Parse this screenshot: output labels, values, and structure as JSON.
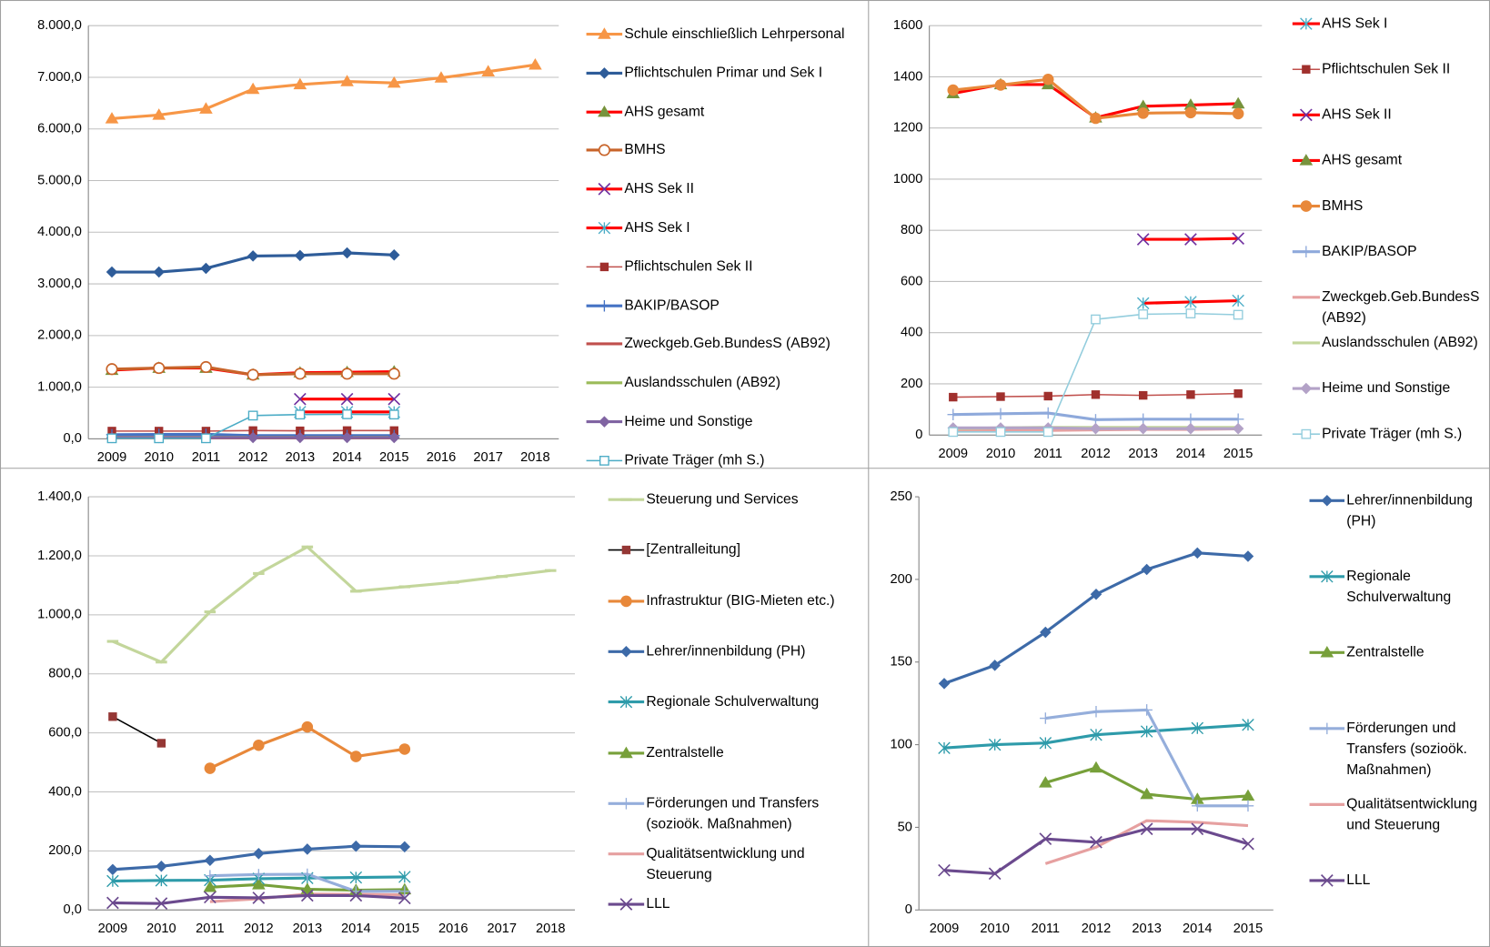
{
  "chart_data": [
    {
      "type": "line",
      "categories": [
        "2009",
        "2010",
        "2011",
        "2012",
        "2013",
        "2014",
        "2015",
        "2016",
        "2017",
        "2018"
      ],
      "ylim": [
        0,
        8000
      ],
      "yticks": [
        {
          "value": 0,
          "label": "0,0"
        },
        {
          "value": 1000,
          "label": "1.000,0"
        },
        {
          "value": 2000,
          "label": "2.000,0"
        },
        {
          "value": 3000,
          "label": "3.000,0"
        },
        {
          "value": 4000,
          "label": "4.000,0"
        },
        {
          "value": 5000,
          "label": "5.000,0"
        },
        {
          "value": 6000,
          "label": "6.000,0"
        },
        {
          "value": 7000,
          "label": "7.000,0"
        },
        {
          "value": 8000,
          "label": "8.000,0"
        }
      ],
      "grid": true,
      "series": [
        {
          "name": "Schule einschließlich Lehrpersonal",
          "color": "#F79646",
          "marker": "triangle",
          "line_width": 3,
          "values": [
            6200,
            6270,
            6390,
            6770,
            6860,
            6920,
            6890,
            6990,
            7110,
            7240
          ]
        },
        {
          "name": "Pflichtschulen Primar und Sek I",
          "color": "#2E5C99",
          "marker": "diamond",
          "line_width": 3,
          "values": [
            3230,
            3230,
            3300,
            3540,
            3550,
            3600,
            3560,
            null,
            null,
            null
          ]
        },
        {
          "name": "AHS gesamt",
          "color": "#FF0000",
          "marker_color": "#77933C",
          "marker": "triangle",
          "line_width": 3,
          "values": [
            1330,
            1370,
            1370,
            1240,
            1280,
            1290,
            1300,
            null,
            null,
            null
          ]
        },
        {
          "name": "BMHS",
          "color": "#C8642A",
          "marker": "circle-open",
          "line_width": 3,
          "values": [
            1350,
            1370,
            1390,
            1240,
            1260,
            1260,
            1260,
            null,
            null,
            null
          ]
        },
        {
          "name": "AHS Sek II",
          "color": "#FF0000",
          "marker_color": "#7030A0",
          "marker": "x",
          "line_width": 3,
          "values": [
            null,
            null,
            null,
            null,
            770,
            770,
            770,
            null,
            null,
            null
          ]
        },
        {
          "name": "AHS Sek I",
          "color": "#FF0000",
          "marker_color": "#4BACC6",
          "marker": "asterisk",
          "line_width": 3,
          "values": [
            null,
            null,
            null,
            null,
            520,
            520,
            520,
            null,
            null,
            null
          ]
        },
        {
          "name": "Pflichtschulen Sek II",
          "color": "#C0504D",
          "marker_color": "#A0302D",
          "marker": "square",
          "line_width": 1.5,
          "values": [
            150,
            150,
            150,
            160,
            155,
            160,
            160,
            null,
            null,
            null
          ]
        },
        {
          "name": "BAKIP/BASOP",
          "color": "#4472C4",
          "marker": "plus",
          "line_width": 3,
          "values": [
            80,
            85,
            88,
            62,
            63,
            63,
            63,
            null,
            null,
            null
          ]
        },
        {
          "name": "Zweckgeb.Geb.BundesS (AB92)",
          "color": "#C0504D",
          "marker": "none",
          "line_width": 3,
          "values": [
            20,
            20,
            20,
            20,
            20,
            20,
            20,
            null,
            null,
            null
          ]
        },
        {
          "name": "Auslandsschulen (AB92)",
          "color": "#9BBB59",
          "marker": "none",
          "line_width": 3,
          "values": [
            30,
            30,
            30,
            30,
            30,
            30,
            30,
            null,
            null,
            null
          ]
        },
        {
          "name": "Heime und Sonstige",
          "color": "#8064A2",
          "marker": "diamond",
          "line_width": 3,
          "values": [
            25,
            25,
            25,
            25,
            25,
            25,
            25,
            null,
            null,
            null
          ]
        },
        {
          "name": "Private Träger (mh S.)",
          "color": "#4BACC6",
          "marker": "square-open",
          "line_width": 1.5,
          "values": [
            10,
            10,
            10,
            450,
            470,
            475,
            470,
            null,
            null,
            null
          ]
        }
      ]
    },
    {
      "type": "line",
      "categories": [
        "2009",
        "2010",
        "2011",
        "2012",
        "2013",
        "2014",
        "2015"
      ],
      "ylim": [
        0,
        1600
      ],
      "yticks": [
        0,
        200,
        400,
        600,
        800,
        1000,
        1200,
        1400,
        1600
      ],
      "grid": true,
      "series": [
        {
          "name": "AHS Sek I",
          "color": "#FF0000",
          "marker_color": "#4BACC6",
          "marker": "asterisk",
          "line_width": 3,
          "values": [
            null,
            null,
            null,
            null,
            515,
            520,
            525
          ]
        },
        {
          "name": "Pflichtschulen Sek II",
          "color": "#C0504D",
          "marker_color": "#A0302D",
          "marker": "square",
          "line_width": 1.5,
          "values": [
            148,
            150,
            152,
            158,
            155,
            158,
            162
          ]
        },
        {
          "name": "AHS Sek II",
          "color": "#FF0000",
          "marker_color": "#7030A0",
          "marker": "x",
          "line_width": 3,
          "values": [
            null,
            null,
            null,
            null,
            765,
            765,
            768
          ]
        },
        {
          "name": "AHS gesamt",
          "color": "#FF0000",
          "marker_color": "#77933C",
          "marker": "triangle",
          "line_width": 3,
          "values": [
            1335,
            1370,
            1370,
            1240,
            1285,
            1290,
            1295
          ]
        },
        {
          "name": "BMHS",
          "color": "#E8883A",
          "marker": "circle",
          "line_width": 3,
          "values": [
            1348,
            1368,
            1390,
            1238,
            1258,
            1260,
            1256
          ]
        },
        {
          "name": "BAKIP/BASOP",
          "color": "#8EA9DB",
          "marker": "plus",
          "line_width": 3,
          "values": [
            80,
            83,
            86,
            60,
            62,
            62,
            62
          ]
        },
        {
          "name": "Zweckgeb.Geb.BundesS (AB92)",
          "color": "#E6A0A0",
          "marker": "none",
          "line_width": 3,
          "values": [
            18,
            18,
            18,
            20,
            22,
            22,
            24
          ]
        },
        {
          "name": "Auslandsschulen (AB92)",
          "color": "#C3D69B",
          "marker": "none",
          "line_width": 3,
          "values": [
            25,
            28,
            30,
            30,
            30,
            30,
            30
          ]
        },
        {
          "name": "Heime und Sonstige",
          "color": "#B3A2C7",
          "marker": "diamond",
          "line_width": 3,
          "values": [
            28,
            28,
            28,
            25,
            25,
            25,
            25
          ]
        },
        {
          "name": "Private Träger (mh S.)",
          "color": "#93CDDD",
          "marker": "square-open",
          "line_width": 1.5,
          "values": [
            12,
            12,
            12,
            452,
            472,
            475,
            470
          ]
        }
      ]
    },
    {
      "type": "line",
      "categories": [
        "2009",
        "2010",
        "2011",
        "2012",
        "2013",
        "2014",
        "2015",
        "2016",
        "2017",
        "2018"
      ],
      "ylim": [
        0,
        1400
      ],
      "yticks": [
        {
          "value": 0,
          "label": "0,0"
        },
        {
          "value": 200,
          "label": "200,0"
        },
        {
          "value": 400,
          "label": "400,0"
        },
        {
          "value": 600,
          "label": "600,0"
        },
        {
          "value": 800,
          "label": "800,0"
        },
        {
          "value": 1000,
          "label": "1.000,0"
        },
        {
          "value": 1200,
          "label": "1.200,0"
        },
        {
          "value": 1400,
          "label": "1.400,0"
        }
      ],
      "grid": true,
      "series": [
        {
          "name": "Steuerung und Services",
          "color": "#C3D69B",
          "marker": "dash",
          "line_width": 3,
          "values": [
            910,
            840,
            1010,
            1140,
            1230,
            1080,
            1095,
            1110,
            1130,
            1150
          ]
        },
        {
          "name": "[Zentralleitung]",
          "color": "#000000",
          "marker_color": "#953735",
          "marker": "square",
          "line_width": 1.5,
          "values": [
            655,
            565,
            null,
            null,
            null,
            null,
            null,
            null,
            null,
            null
          ]
        },
        {
          "name": "Infrastruktur (BIG-Mieten etc.)",
          "color": "#E8883A",
          "marker": "circle",
          "line_width": 3,
          "values": [
            null,
            null,
            480,
            558,
            620,
            520,
            545,
            null,
            null,
            null
          ]
        },
        {
          "name": "Lehrer/innenbildung (PH)",
          "color": "#3D6AA8",
          "marker": "diamond",
          "line_width": 3,
          "values": [
            137,
            148,
            168,
            191,
            206,
            216,
            214,
            null,
            null,
            null
          ]
        },
        {
          "name": "Regionale Schulverwaltung",
          "color": "#2E9BAA",
          "marker": "asterisk",
          "line_width": 3,
          "values": [
            98,
            100,
            101,
            106,
            108,
            110,
            112,
            null,
            null,
            null
          ]
        },
        {
          "name": "Zentralstelle",
          "color": "#77A03A",
          "marker": "triangle",
          "line_width": 3,
          "values": [
            null,
            null,
            77,
            86,
            70,
            67,
            69,
            null,
            null,
            null
          ]
        },
        {
          "name": "Förderungen und Transfers (sozioök. Maßnahmen)",
          "color": "#95AEDB",
          "marker": "plus",
          "line_width": 3,
          "values": [
            null,
            null,
            116,
            120,
            121,
            63,
            63,
            null,
            null,
            null
          ]
        },
        {
          "name": "Qualitätsentwicklung und Steuerung",
          "color": "#E6A0A0",
          "marker": "none",
          "line_width": 3,
          "values": [
            null,
            null,
            28,
            38,
            54,
            53,
            51,
            null,
            null,
            null
          ]
        },
        {
          "name": "LLL",
          "color": "#6B4A8E",
          "marker": "x",
          "line_width": 3,
          "values": [
            24,
            22,
            43,
            41,
            49,
            49,
            40,
            null,
            null,
            null
          ]
        }
      ]
    },
    {
      "type": "line",
      "categories": [
        "2009",
        "2010",
        "2011",
        "2012",
        "2013",
        "2014",
        "2015"
      ],
      "ylim": [
        0,
        250
      ],
      "yticks": [
        0,
        50,
        100,
        150,
        200,
        250
      ],
      "grid": false,
      "series": [
        {
          "name": "Lehrer/innenbildung (PH)",
          "color": "#3D6AA8",
          "marker": "diamond",
          "line_width": 3,
          "values": [
            137,
            148,
            168,
            191,
            206,
            216,
            214
          ]
        },
        {
          "name": "Regionale Schulverwaltung",
          "color": "#2E9BAA",
          "marker": "asterisk",
          "line_width": 3,
          "values": [
            98,
            100,
            101,
            106,
            108,
            110,
            112
          ]
        },
        {
          "name": "Zentralstelle",
          "color": "#77A03A",
          "marker": "triangle",
          "line_width": 3,
          "values": [
            null,
            null,
            77,
            86,
            70,
            67,
            69
          ]
        },
        {
          "name": "Förderungen und Transfers (sozioök. Maßnahmen)",
          "color": "#95AEDB",
          "marker": "plus",
          "line_width": 3,
          "values": [
            null,
            null,
            116,
            120,
            121,
            63,
            63
          ]
        },
        {
          "name": "Qualitätsentwicklung und Steuerung",
          "color": "#E6A0A0",
          "marker": "none",
          "line_width": 3,
          "values": [
            null,
            null,
            28,
            38,
            54,
            53,
            51
          ]
        },
        {
          "name": "LLL",
          "color": "#6B4A8E",
          "marker": "x",
          "line_width": 3,
          "values": [
            24,
            22,
            43,
            41,
            49,
            49,
            40
          ]
        }
      ]
    }
  ]
}
